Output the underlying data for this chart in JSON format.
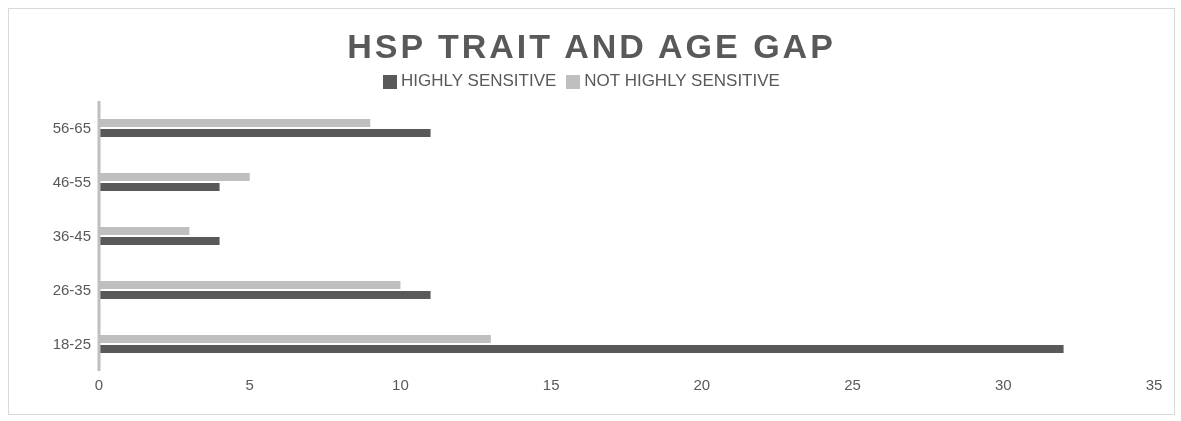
{
  "chart_data": {
    "type": "bar",
    "orientation": "horizontal",
    "title": "HSP TRAIT AND AGE GAP",
    "categories": [
      "56-65",
      "46-55",
      "36-45",
      "26-35",
      "18-25"
    ],
    "series": [
      {
        "name": "NOT HIGHLY SENSITIVE",
        "color": "#bfbfbf",
        "values": [
          9,
          5,
          3,
          10,
          13
        ]
      },
      {
        "name": "HIGHLY SENSITIVE",
        "color": "#595959",
        "values": [
          11,
          4,
          4,
          11,
          32
        ]
      }
    ],
    "xlim": [
      0,
      35
    ],
    "xticks": [
      0,
      5,
      10,
      15,
      20,
      25,
      30,
      35
    ],
    "grid": false,
    "legend": "top"
  }
}
